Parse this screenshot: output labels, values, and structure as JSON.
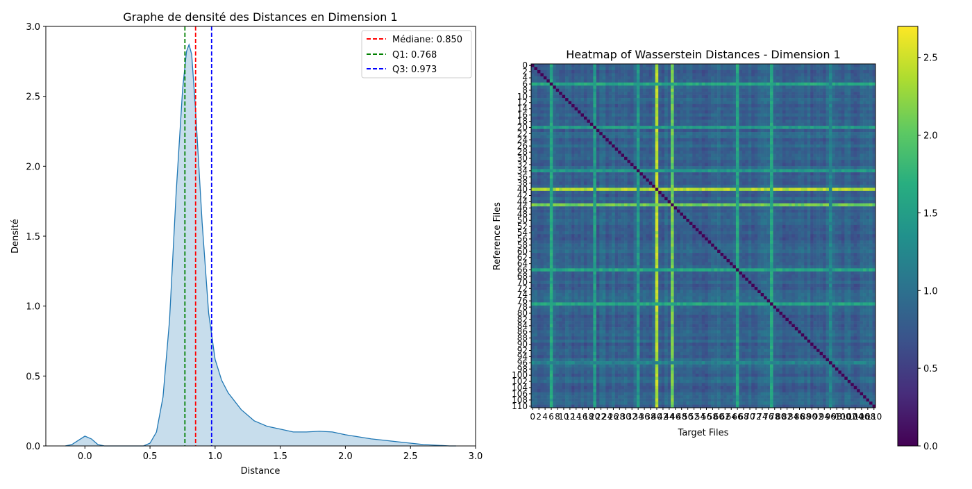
{
  "chart_data": [
    {
      "type": "area",
      "title": "Graphe de densité des Distances en Dimension 1",
      "xlabel": "Distance",
      "ylabel": "Densité",
      "xlim": [
        -0.3,
        3.0
      ],
      "ylim": [
        0,
        3.0
      ],
      "xticks": [
        "0.0",
        "0.5",
        "1.0",
        "1.5",
        "2.0",
        "2.5",
        "3.0"
      ],
      "yticks": [
        "0.0",
        "0.5",
        "1.0",
        "1.5",
        "2.0",
        "2.5",
        "3.0"
      ],
      "grid": false,
      "legend_position": "top-right",
      "series": [
        {
          "color": "#1f77b4",
          "x": [
            -0.15,
            -0.1,
            -0.05,
            0.0,
            0.05,
            0.1,
            0.15,
            0.2,
            0.3,
            0.4,
            0.45,
            0.5,
            0.55,
            0.6,
            0.65,
            0.7,
            0.75,
            0.78,
            0.8,
            0.82,
            0.85,
            0.9,
            0.95,
            1.0,
            1.05,
            1.1,
            1.2,
            1.3,
            1.4,
            1.5,
            1.6,
            1.7,
            1.8,
            1.9,
            2.0,
            2.1,
            2.2,
            2.3,
            2.4,
            2.5,
            2.6,
            2.7,
            2.8,
            2.85
          ],
          "y": [
            0.0,
            0.01,
            0.04,
            0.07,
            0.05,
            0.01,
            0.0,
            0.0,
            0.0,
            0.0,
            0.0,
            0.02,
            0.1,
            0.35,
            0.9,
            1.8,
            2.55,
            2.82,
            2.87,
            2.8,
            2.4,
            1.6,
            0.95,
            0.62,
            0.47,
            0.38,
            0.26,
            0.18,
            0.14,
            0.12,
            0.1,
            0.1,
            0.105,
            0.1,
            0.08,
            0.065,
            0.05,
            0.04,
            0.03,
            0.02,
            0.01,
            0.005,
            0.0,
            0.0
          ]
        }
      ],
      "vlines": [
        {
          "label": "Médiane: 0.850",
          "x": 0.85,
          "color": "#ff0000"
        },
        {
          "label": "Q1: 0.768",
          "x": 0.768,
          "color": "#008000"
        },
        {
          "label": "Q3: 0.973",
          "x": 0.973,
          "color": "#0000ff"
        }
      ]
    },
    {
      "type": "heatmap",
      "title": "Heatmap of Wasserstein Distances - Dimension 1",
      "xlabel": "Target Files",
      "ylabel": "Reference Files",
      "n": 111,
      "tick_step": 2,
      "ytick_labels": [
        "0",
        "2",
        "4",
        "6",
        "8",
        "10",
        "12",
        "14",
        "16",
        "18",
        "20",
        "22",
        "24",
        "26",
        "28",
        "30",
        "32",
        "34",
        "36",
        "38",
        "40",
        "42",
        "44",
        "46",
        "48",
        "50",
        "52",
        "54",
        "56",
        "58",
        "60",
        "62",
        "64",
        "66",
        "68",
        "70",
        "72",
        "74",
        "76",
        "78",
        "80",
        "82",
        "84",
        "86",
        "88",
        "90",
        "92",
        "94",
        "96",
        "98",
        "100",
        "102",
        "104",
        "106",
        "108",
        "110"
      ],
      "colormap": "viridis",
      "diagonal_value": 0.0,
      "base_value": 0.8,
      "row_col_effects": [
        {
          "index": 6,
          "value": 1.6
        },
        {
          "index": 20,
          "value": 1.5
        },
        {
          "index": 34,
          "value": 1.45
        },
        {
          "index": 40,
          "value": 2.4
        },
        {
          "index": 45,
          "value": 2.1
        },
        {
          "index": 66,
          "value": 1.6
        },
        {
          "index": 77,
          "value": 1.6
        },
        {
          "index": 96,
          "value": 1.2
        }
      ],
      "colorbar": {
        "min": 0.0,
        "max": 2.7,
        "ticks": [
          "0.0",
          "0.5",
          "1.0",
          "1.5",
          "2.0",
          "2.5"
        ]
      }
    }
  ]
}
